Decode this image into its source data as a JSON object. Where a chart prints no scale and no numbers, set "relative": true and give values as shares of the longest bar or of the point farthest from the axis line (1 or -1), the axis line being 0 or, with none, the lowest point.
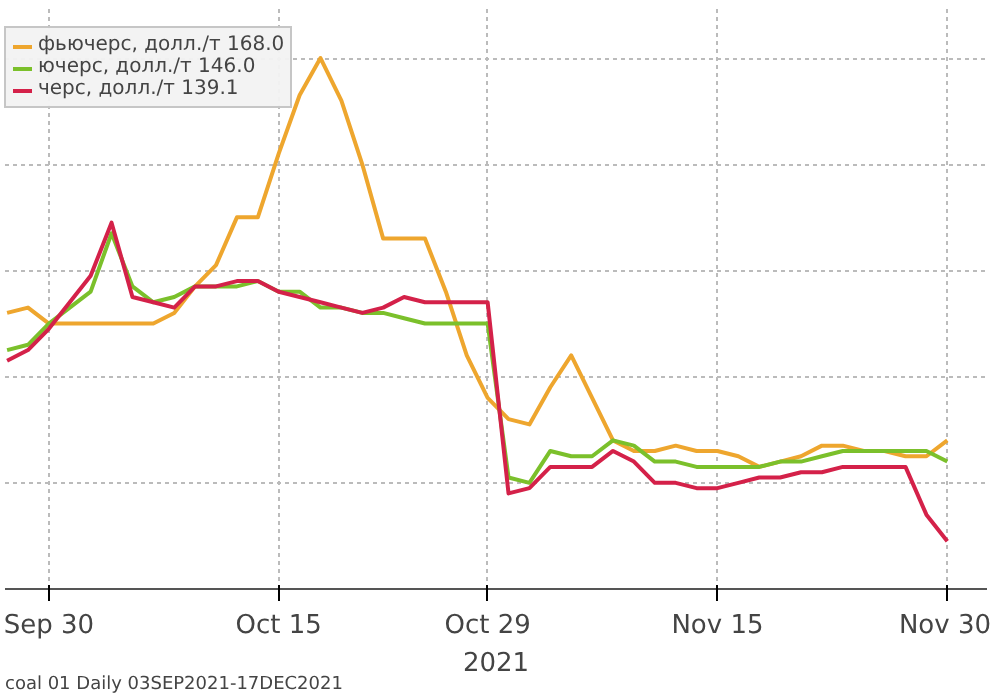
{
  "chart_data": {
    "type": "line",
    "relative": true,
    "categories": [
      null,
      null,
      "Sep 30",
      null,
      null,
      null,
      null,
      null,
      null,
      null,
      null,
      null,
      null,
      "Oct 15",
      null,
      null,
      null,
      null,
      null,
      null,
      null,
      null,
      null,
      "Oct 29",
      null,
      null,
      null,
      null,
      null,
      null,
      null,
      null,
      null,
      null,
      "Nov 15",
      null,
      null,
      null,
      null,
      null,
      null,
      null,
      null,
      null,
      null,
      "Nov 30"
    ],
    "series": [
      {
        "name": "фьючерс, долл./т 168.0",
        "color": "#eea62e",
        "values": [
          0.52,
          0.53,
          0.5,
          0.5,
          0.5,
          0.5,
          0.5,
          0.5,
          0.52,
          0.57,
          0.61,
          0.7,
          0.7,
          0.82,
          0.93,
          1.0,
          0.92,
          0.8,
          0.66,
          0.66,
          0.66,
          0.56,
          0.44,
          0.36,
          0.32,
          0.31,
          0.38,
          0.44,
          0.36,
          0.28,
          0.26,
          0.26,
          0.27,
          0.26,
          0.26,
          0.25,
          0.23,
          0.24,
          0.25,
          0.27,
          0.27,
          0.26,
          0.26,
          0.25,
          0.25,
          0.28
        ]
      },
      {
        "name": "ючерс, долл./т 146.0",
        "color": "#7bc02b",
        "values": [
          0.45,
          0.46,
          0.5,
          0.53,
          0.56,
          0.67,
          0.57,
          0.54,
          0.55,
          0.57,
          0.57,
          0.57,
          0.58,
          0.56,
          0.56,
          0.53,
          0.53,
          0.52,
          0.52,
          0.51,
          0.5,
          0.5,
          0.5,
          0.5,
          0.21,
          0.2,
          0.26,
          0.25,
          0.25,
          0.28,
          0.27,
          0.24,
          0.24,
          0.23,
          0.23,
          0.23,
          0.23,
          0.24,
          0.24,
          0.25,
          0.26,
          0.26,
          0.26,
          0.26,
          0.26,
          0.24
        ]
      },
      {
        "name": "черс, долл./т 139.1",
        "color": "#d42149",
        "values": [
          0.43,
          0.45,
          0.49,
          0.54,
          0.59,
          0.69,
          0.55,
          0.54,
          0.53,
          0.57,
          0.57,
          0.58,
          0.58,
          0.56,
          0.55,
          0.54,
          0.53,
          0.52,
          0.53,
          0.55,
          0.54,
          0.54,
          0.54,
          0.54,
          0.18,
          0.19,
          0.23,
          0.23,
          0.23,
          0.26,
          0.24,
          0.2,
          0.2,
          0.19,
          0.19,
          0.2,
          0.21,
          0.21,
          0.22,
          0.22,
          0.23,
          0.23,
          0.23,
          0.23,
          0.14,
          0.09
        ]
      }
    ],
    "grid": true,
    "legend": "top left",
    "line_style": "solid",
    "marker": "none",
    "annotations": [
      "2021",
      "coal 01  Daily 03SEP2021-17DEC2021"
    ]
  }
}
